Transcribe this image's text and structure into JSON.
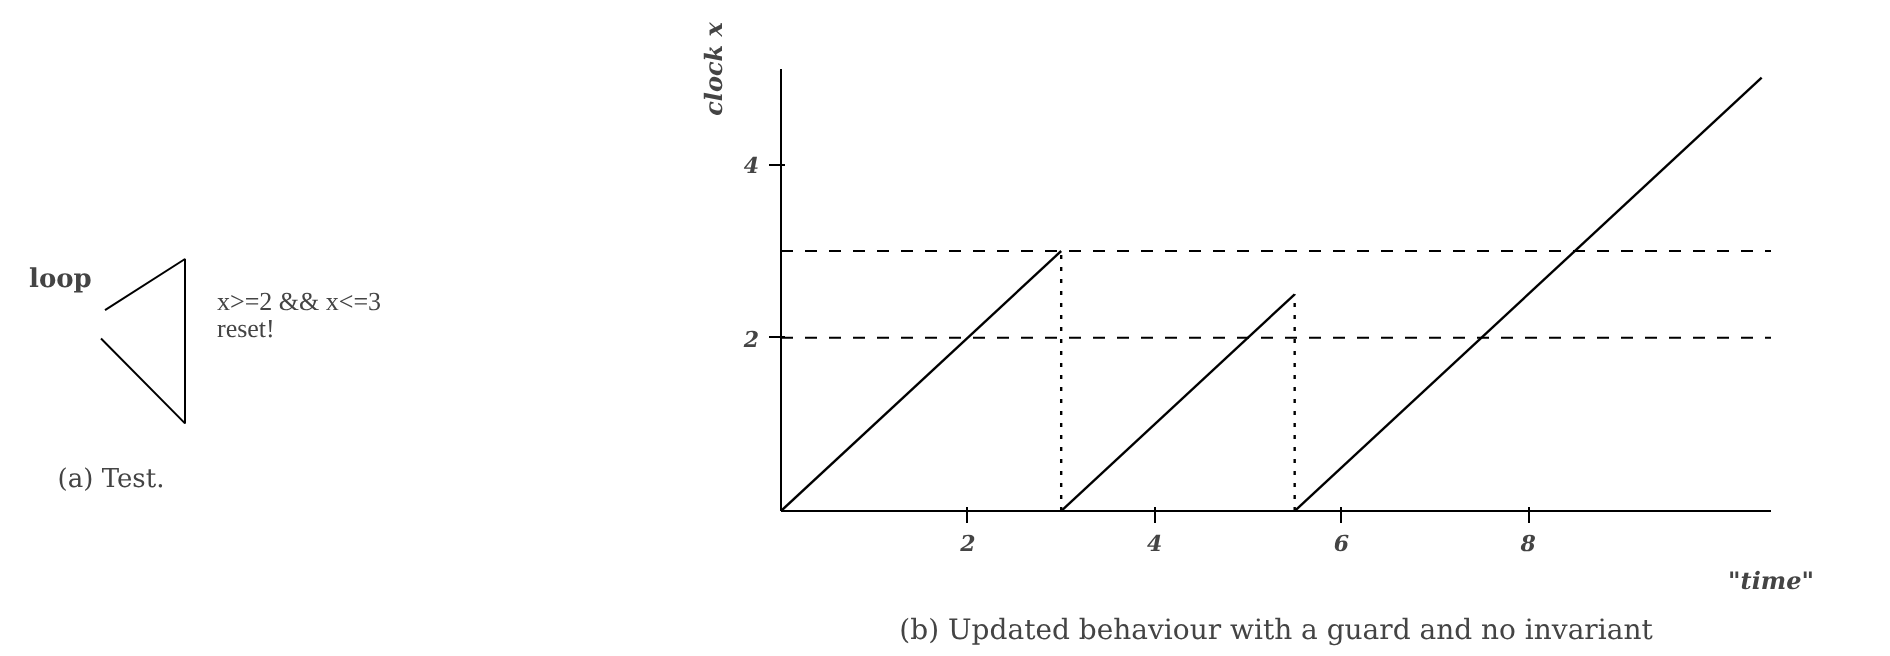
{
  "chart_data": [
    {
      "type": "other",
      "annotations": [
        "loop",
        "x>=2 && x<=3",
        "reset!",
        "(a) Test."
      ]
    },
    {
      "type": "line",
      "xlabel": "\"time\"",
      "ylabel": "clock x",
      "xlim": [
        0,
        10.6
      ],
      "ylim": [
        0,
        5.1
      ],
      "xticks": [
        2,
        4,
        6,
        8
      ],
      "yticks": [
        2,
        4
      ],
      "grid": false,
      "line_style": "solid",
      "series": [
        {
          "x": [
            0,
            3
          ],
          "values": [
            0,
            3
          ],
          "color": "#000000"
        },
        {
          "x": [
            3,
            5.5
          ],
          "values": [
            0,
            2.5
          ],
          "color": "#000000"
        },
        {
          "x": [
            5.5,
            10.5
          ],
          "values": [
            0,
            5
          ],
          "color": "#000000"
        },
        {
          "x": [
            3,
            3
          ],
          "values": [
            0,
            3
          ],
          "color": "#000000",
          "line_style": "dotted"
        },
        {
          "x": [
            5.5,
            5.5
          ],
          "values": [
            0,
            2.5
          ],
          "color": "#000000",
          "line_style": "dotted"
        }
      ],
      "ref_lines": [
        {
          "axis": "y",
          "value": 3,
          "color": "#000000",
          "line_style": "dashed"
        },
        {
          "axis": "y",
          "value": 2,
          "color": "#000000",
          "line_style": "dashed"
        }
      ],
      "annotations": [
        "(b) Updated behaviour with a guard and no invariant"
      ]
    }
  ]
}
